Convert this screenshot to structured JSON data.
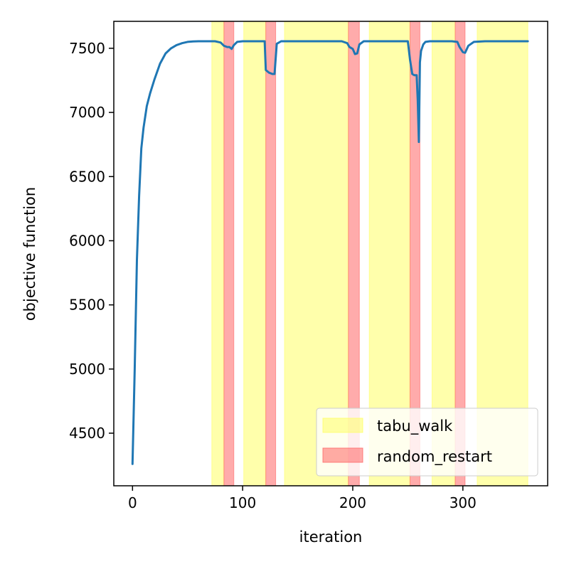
{
  "chart_data": {
    "type": "line",
    "title": "",
    "xlabel": "iteration",
    "ylabel": "objective function",
    "xlim": [
      -17,
      377
    ],
    "ylim": [
      4090,
      7710
    ],
    "xticks": [
      0,
      100,
      200,
      300
    ],
    "yticks": [
      4500,
      5000,
      5500,
      6000,
      6500,
      7000,
      7500
    ],
    "grid": false,
    "legend_position": "bottom-right",
    "colors": {
      "line": "#1f77b4",
      "tabu_walk": "#ffff66",
      "random_restart": "#ff6666"
    },
    "series": [
      {
        "x": [
          0,
          2,
          4,
          6,
          8,
          10,
          13,
          16,
          20,
          25,
          30,
          35,
          40,
          45,
          50,
          55,
          60,
          70,
          75,
          80,
          83,
          86,
          88,
          90,
          92,
          95,
          100,
          105,
          110,
          115,
          120,
          121,
          124,
          127,
          129,
          131,
          135,
          140,
          150,
          160,
          170,
          180,
          190,
          195,
          197,
          200,
          202,
          204,
          206,
          210,
          215,
          220,
          230,
          240,
          250,
          252,
          254,
          256,
          258,
          259,
          260,
          261,
          262,
          264,
          266,
          270,
          280,
          290,
          295,
          297,
          300,
          302,
          305,
          310,
          320,
          330,
          340,
          350,
          359
        ],
        "y": [
          4260,
          5000,
          5850,
          6350,
          6720,
          6880,
          7050,
          7150,
          7260,
          7380,
          7460,
          7500,
          7525,
          7540,
          7550,
          7553,
          7555,
          7555,
          7555,
          7545,
          7520,
          7510,
          7510,
          7495,
          7525,
          7550,
          7555,
          7555,
          7555,
          7555,
          7555,
          7330,
          7310,
          7300,
          7300,
          7535,
          7555,
          7555,
          7555,
          7555,
          7555,
          7555,
          7555,
          7540,
          7510,
          7495,
          7455,
          7460,
          7530,
          7555,
          7555,
          7555,
          7555,
          7555,
          7555,
          7410,
          7300,
          7290,
          7290,
          7100,
          6770,
          7390,
          7480,
          7530,
          7550,
          7555,
          7555,
          7555,
          7550,
          7510,
          7470,
          7465,
          7520,
          7550,
          7555,
          7555,
          7555,
          7555,
          7555
        ]
      }
    ],
    "shaded_regions": [
      {
        "name": "tabu_walk",
        "ranges": [
          [
            72,
            83
          ],
          [
            101,
            121
          ],
          [
            138,
            196
          ],
          [
            215,
            252
          ],
          [
            272,
            293
          ],
          [
            313,
            359
          ]
        ]
      },
      {
        "name": "random_restart",
        "ranges": [
          [
            83,
            92
          ],
          [
            121,
            130
          ],
          [
            196,
            206
          ],
          [
            252,
            261
          ],
          [
            293,
            302
          ]
        ]
      }
    ],
    "legend": [
      "tabu_walk",
      "random_restart"
    ]
  }
}
